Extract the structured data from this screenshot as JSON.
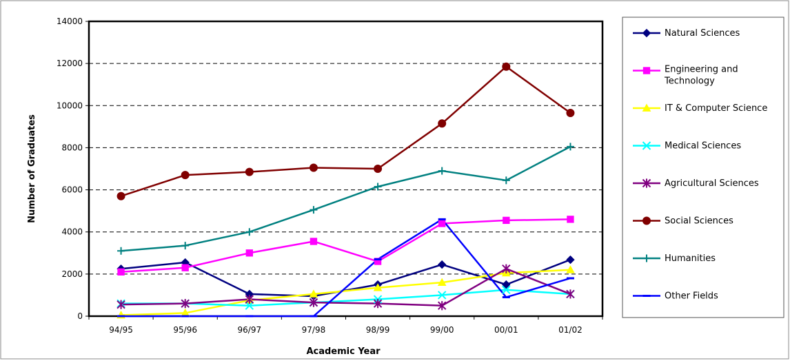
{
  "chart_data": {
    "type": "line",
    "title": "",
    "xlabel": "Academic Year",
    "ylabel": "Number of Graduates",
    "categories": [
      "94/95",
      "95/96",
      "96/97",
      "97/98",
      "98/99",
      "99/00",
      "00/01",
      "01/02"
    ],
    "ylim": [
      0,
      14000
    ],
    "yticks": [
      0,
      2000,
      4000,
      6000,
      8000,
      10000,
      12000,
      14000
    ],
    "grid": "dashed horizontal",
    "legend_position": "right",
    "series": [
      {
        "name": "Natural Sciences",
        "color": "#000080",
        "marker": "diamond",
        "values": [
          2250,
          2550,
          1050,
          950,
          1500,
          2450,
          1500,
          2680
        ]
      },
      {
        "name": "Engineering and Technology",
        "color": "#ff00ff",
        "marker": "square",
        "values": [
          2100,
          2300,
          3000,
          3550,
          2600,
          4400,
          4550,
          4600
        ]
      },
      {
        "name": "IT & Computer Science",
        "color": "#ffff00",
        "marker": "triangle",
        "values": [
          50,
          150,
          750,
          1050,
          1350,
          1600,
          2050,
          2200
        ]
      },
      {
        "name": "Medical Sciences",
        "color": "#00ffff",
        "marker": "x",
        "values": [
          600,
          600,
          500,
          650,
          800,
          1000,
          1250,
          1050
        ]
      },
      {
        "name": "Agricultural Sciences",
        "color": "#800080",
        "marker": "asterisk",
        "values": [
          550,
          600,
          800,
          650,
          600,
          500,
          2250,
          1050
        ]
      },
      {
        "name": "Social Sciences",
        "color": "#800000",
        "marker": "circle",
        "values": [
          5700,
          6700,
          6850,
          7050,
          7000,
          9150,
          11850,
          9650
        ]
      },
      {
        "name": "Humanities",
        "color": "#008080",
        "marker": "plus",
        "values": [
          3100,
          3350,
          4000,
          5050,
          6150,
          6900,
          6450,
          8050
        ]
      },
      {
        "name": "Other Fields",
        "color": "#0000ff",
        "marker": "dash",
        "values": [
          0,
          0,
          0,
          0,
          2700,
          4600,
          900,
          1800
        ]
      }
    ]
  }
}
